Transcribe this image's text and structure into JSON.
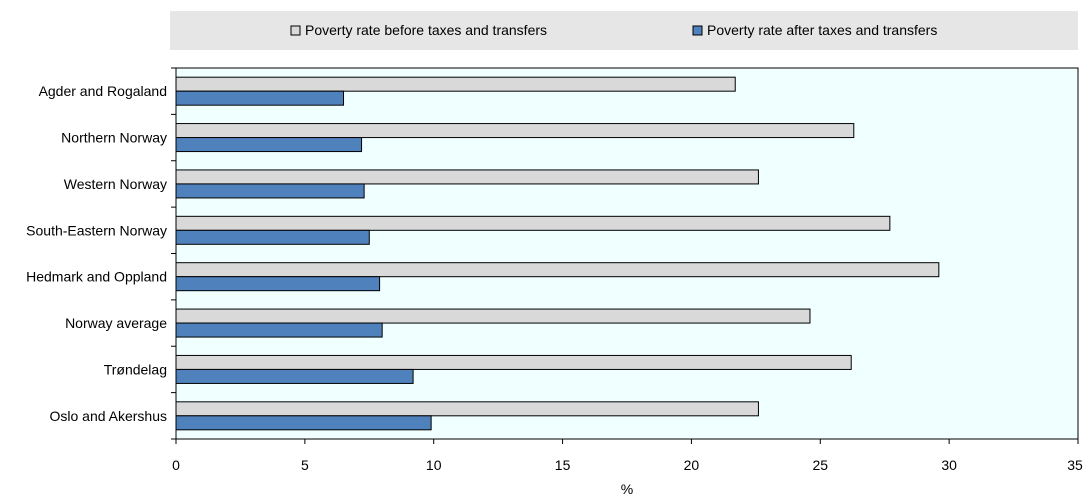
{
  "chart_data": {
    "type": "bar",
    "orientation": "horizontal",
    "categories": [
      "Agder and Rogaland",
      "Northern Norway",
      "Western Norway",
      "South-Eastern Norway",
      "Hedmark and Oppland",
      "Norway average",
      "Trøndelag",
      "Oslo and Akershus"
    ],
    "series": [
      {
        "name": "Poverty rate before taxes and transfers",
        "color": "#d9d9d9",
        "values": [
          21.7,
          26.3,
          22.6,
          27.7,
          29.6,
          24.6,
          26.2,
          22.6
        ]
      },
      {
        "name": "Poverty rate after taxes and transfers",
        "color": "#4f81bd",
        "values": [
          6.5,
          7.2,
          7.3,
          7.5,
          7.9,
          8.0,
          9.2,
          9.9
        ]
      }
    ],
    "title": "",
    "xlabel": "%",
    "ylabel": "",
    "xlim": [
      0,
      35
    ],
    "xticks": [
      0,
      5,
      10,
      15,
      20,
      25,
      30,
      35
    ],
    "grid": false,
    "legend_position": "top",
    "plot_background": "#f0ffff"
  }
}
